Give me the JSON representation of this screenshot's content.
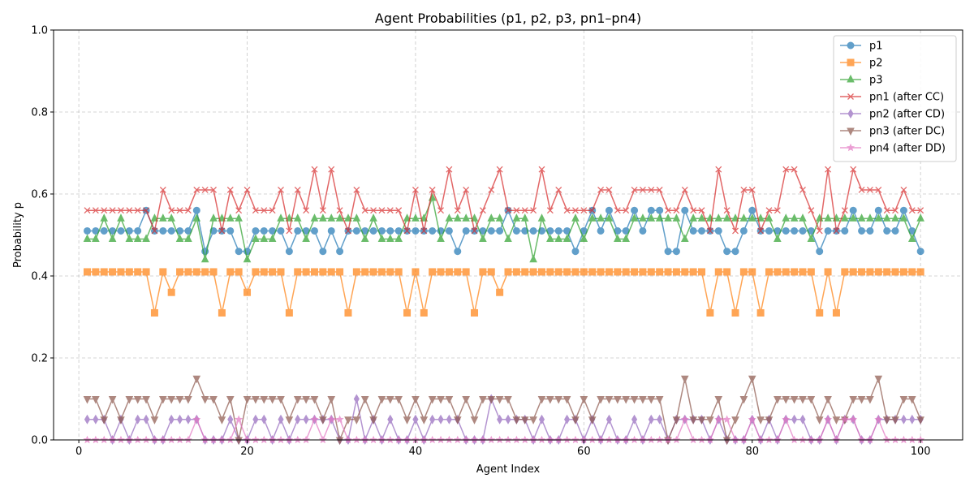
{
  "chart_data": {
    "type": "line",
    "title": "Agent Probabilities (p1, p2, p3, pn1–pn4)",
    "xlabel": "Agent Index",
    "ylabel": "Probability p",
    "xlim": [
      -3,
      105
    ],
    "ylim": [
      0,
      1.0
    ],
    "xticks": [
      0,
      20,
      40,
      60,
      80,
      100
    ],
    "yticks": [
      0.0,
      0.2,
      0.4,
      0.6,
      0.8,
      1.0
    ],
    "xtick_labels": [
      "0",
      "20",
      "40",
      "60",
      "80",
      "100"
    ],
    "ytick_labels": [
      "0.0",
      "0.2",
      "0.4",
      "0.6",
      "0.8",
      "1.0"
    ],
    "grid": true,
    "legend_position": "top-right",
    "x": [
      1,
      2,
      3,
      4,
      5,
      6,
      7,
      8,
      9,
      10,
      11,
      12,
      13,
      14,
      15,
      16,
      17,
      18,
      19,
      20,
      21,
      22,
      23,
      24,
      25,
      26,
      27,
      28,
      29,
      30,
      31,
      32,
      33,
      34,
      35,
      36,
      37,
      38,
      39,
      40,
      41,
      42,
      43,
      44,
      45,
      46,
      47,
      48,
      49,
      50,
      51,
      52,
      53,
      54,
      55,
      56,
      57,
      58,
      59,
      60,
      61,
      62,
      63,
      64,
      65,
      66,
      67,
      68,
      69,
      70,
      71,
      72,
      73,
      74,
      75,
      76,
      77,
      78,
      79,
      80,
      81,
      82,
      83,
      84,
      85,
      86,
      87,
      88,
      89,
      90,
      91,
      92,
      93,
      94,
      95,
      96,
      97,
      98,
      99,
      100
    ],
    "series": [
      {
        "name": "p1",
        "color": "#1f77b4",
        "marker": "circle",
        "values": [
          0.51,
          0.51,
          0.51,
          0.51,
          0.51,
          0.51,
          0.51,
          0.56,
          0.51,
          0.51,
          0.51,
          0.51,
          0.51,
          0.56,
          0.46,
          0.51,
          0.51,
          0.51,
          0.46,
          0.46,
          0.51,
          0.51,
          0.51,
          0.51,
          0.46,
          0.51,
          0.51,
          0.51,
          0.46,
          0.51,
          0.46,
          0.51,
          0.51,
          0.51,
          0.51,
          0.51,
          0.51,
          0.51,
          0.51,
          0.51,
          0.51,
          0.51,
          0.51,
          0.51,
          0.46,
          0.51,
          0.51,
          0.51,
          0.51,
          0.51,
          0.56,
          0.51,
          0.51,
          0.51,
          0.51,
          0.51,
          0.51,
          0.51,
          0.46,
          0.51,
          0.56,
          0.51,
          0.56,
          0.51,
          0.51,
          0.56,
          0.51,
          0.56,
          0.56,
          0.46,
          0.46,
          0.56,
          0.51,
          0.51,
          0.51,
          0.51,
          0.46,
          0.46,
          0.51,
          0.56,
          0.51,
          0.51,
          0.51,
          0.51,
          0.51,
          0.51,
          0.51,
          0.46,
          0.51,
          0.51,
          0.51,
          0.56,
          0.51,
          0.51,
          0.56,
          0.51,
          0.51,
          0.56,
          0.51,
          0.46
        ]
      },
      {
        "name": "p2",
        "color": "#ff7f0e",
        "marker": "square",
        "values": [
          0.41,
          0.41,
          0.41,
          0.41,
          0.41,
          0.41,
          0.41,
          0.41,
          0.31,
          0.41,
          0.36,
          0.41,
          0.41,
          0.41,
          0.41,
          0.41,
          0.31,
          0.41,
          0.41,
          0.36,
          0.41,
          0.41,
          0.41,
          0.41,
          0.31,
          0.41,
          0.41,
          0.41,
          0.41,
          0.41,
          0.41,
          0.31,
          0.41,
          0.41,
          0.41,
          0.41,
          0.41,
          0.41,
          0.31,
          0.41,
          0.31,
          0.41,
          0.41,
          0.41,
          0.41,
          0.41,
          0.31,
          0.41,
          0.41,
          0.36,
          0.41,
          0.41,
          0.41,
          0.41,
          0.41,
          0.41,
          0.41,
          0.41,
          0.41,
          0.41,
          0.41,
          0.41,
          0.41,
          0.41,
          0.41,
          0.41,
          0.41,
          0.41,
          0.41,
          0.41,
          0.41,
          0.41,
          0.41,
          0.41,
          0.31,
          0.41,
          0.41,
          0.31,
          0.41,
          0.41,
          0.31,
          0.41,
          0.41,
          0.41,
          0.41,
          0.41,
          0.41,
          0.31,
          0.41,
          0.31,
          0.41,
          0.41,
          0.41,
          0.41,
          0.41,
          0.41,
          0.41,
          0.41,
          0.41,
          0.41
        ]
      },
      {
        "name": "p3",
        "color": "#2ca02c",
        "marker": "triangle-up",
        "values": [
          0.49,
          0.49,
          0.54,
          0.49,
          0.54,
          0.49,
          0.49,
          0.49,
          0.54,
          0.54,
          0.54,
          0.49,
          0.49,
          0.54,
          0.44,
          0.54,
          0.54,
          0.54,
          0.54,
          0.44,
          0.49,
          0.49,
          0.49,
          0.54,
          0.54,
          0.54,
          0.49,
          0.54,
          0.54,
          0.54,
          0.54,
          0.54,
          0.54,
          0.49,
          0.54,
          0.49,
          0.49,
          0.49,
          0.54,
          0.54,
          0.54,
          0.59,
          0.49,
          0.54,
          0.54,
          0.54,
          0.54,
          0.49,
          0.54,
          0.54,
          0.49,
          0.54,
          0.54,
          0.44,
          0.54,
          0.49,
          0.49,
          0.49,
          0.54,
          0.49,
          0.54,
          0.54,
          0.54,
          0.49,
          0.49,
          0.54,
          0.54,
          0.54,
          0.54,
          0.54,
          0.54,
          0.49,
          0.54,
          0.54,
          0.54,
          0.54,
          0.54,
          0.54,
          0.54,
          0.54,
          0.54,
          0.54,
          0.49,
          0.54,
          0.54,
          0.54,
          0.49,
          0.54,
          0.54,
          0.54,
          0.54,
          0.54,
          0.54,
          0.54,
          0.54,
          0.54,
          0.54,
          0.54,
          0.49,
          0.54
        ]
      },
      {
        "name": "pn1 (after CC)",
        "color": "#d62728",
        "marker": "x",
        "values": [
          0.56,
          0.56,
          0.56,
          0.56,
          0.56,
          0.56,
          0.56,
          0.56,
          0.51,
          0.61,
          0.56,
          0.56,
          0.56,
          0.61,
          0.61,
          0.61,
          0.51,
          0.61,
          0.56,
          0.61,
          0.56,
          0.56,
          0.56,
          0.61,
          0.51,
          0.61,
          0.56,
          0.66,
          0.56,
          0.66,
          0.56,
          0.51,
          0.61,
          0.56,
          0.56,
          0.56,
          0.56,
          0.56,
          0.51,
          0.61,
          0.51,
          0.61,
          0.56,
          0.66,
          0.56,
          0.61,
          0.51,
          0.56,
          0.61,
          0.66,
          0.56,
          0.56,
          0.56,
          0.56,
          0.66,
          0.56,
          0.61,
          0.56,
          0.56,
          0.56,
          0.56,
          0.61,
          0.61,
          0.56,
          0.56,
          0.61,
          0.61,
          0.61,
          0.61,
          0.56,
          0.56,
          0.61,
          0.56,
          0.56,
          0.51,
          0.66,
          0.56,
          0.51,
          0.61,
          0.61,
          0.51,
          0.56,
          0.56,
          0.66,
          0.66,
          0.61,
          0.56,
          0.51,
          0.66,
          0.51,
          0.56,
          0.66,
          0.61,
          0.61,
          0.61,
          0.56,
          0.56,
          0.61,
          0.56,
          0.56
        ]
      },
      {
        "name": "pn2 (after CD)",
        "color": "#9467bd",
        "marker": "diamond",
        "values": [
          0.05,
          0.05,
          0.05,
          0.0,
          0.05,
          0.0,
          0.05,
          0.05,
          0.0,
          0.0,
          0.05,
          0.05,
          0.05,
          0.05,
          0.0,
          0.0,
          0.0,
          0.05,
          0.0,
          0.0,
          0.05,
          0.05,
          0.0,
          0.05,
          0.0,
          0.05,
          0.05,
          0.05,
          0.05,
          0.05,
          0.0,
          0.0,
          0.1,
          0.0,
          0.05,
          0.0,
          0.05,
          0.0,
          0.0,
          0.05,
          0.0,
          0.05,
          0.05,
          0.05,
          0.05,
          0.0,
          0.0,
          0.0,
          0.1,
          0.05,
          0.05,
          0.05,
          0.05,
          0.0,
          0.05,
          0.0,
          0.0,
          0.05,
          0.05,
          0.0,
          0.05,
          0.0,
          0.05,
          0.0,
          0.0,
          0.05,
          0.0,
          0.05,
          0.05,
          0.0,
          0.05,
          0.05,
          0.05,
          0.05,
          0.0,
          0.05,
          0.0,
          0.0,
          0.0,
          0.05,
          0.0,
          0.05,
          0.0,
          0.05,
          0.05,
          0.05,
          0.0,
          0.0,
          0.05,
          0.0,
          0.05,
          0.05,
          0.0,
          0.0,
          0.05,
          0.05,
          0.05,
          0.05,
          0.05,
          0.05
        ]
      },
      {
        "name": "pn3 (after DC)",
        "color": "#8c564b",
        "marker": "triangle-down",
        "values": [
          0.1,
          0.1,
          0.05,
          0.1,
          0.05,
          0.1,
          0.1,
          0.1,
          0.05,
          0.1,
          0.1,
          0.1,
          0.1,
          0.15,
          0.1,
          0.1,
          0.05,
          0.1,
          0.0,
          0.1,
          0.1,
          0.1,
          0.1,
          0.1,
          0.05,
          0.1,
          0.1,
          0.1,
          0.05,
          0.1,
          0.0,
          0.05,
          0.05,
          0.1,
          0.05,
          0.1,
          0.1,
          0.1,
          0.05,
          0.1,
          0.05,
          0.1,
          0.1,
          0.1,
          0.05,
          0.1,
          0.05,
          0.1,
          0.1,
          0.1,
          0.1,
          0.05,
          0.05,
          0.05,
          0.1,
          0.1,
          0.1,
          0.1,
          0.05,
          0.1,
          0.05,
          0.1,
          0.1,
          0.1,
          0.1,
          0.1,
          0.1,
          0.1,
          0.1,
          0.0,
          0.05,
          0.15,
          0.05,
          0.05,
          0.05,
          0.1,
          0.0,
          0.05,
          0.1,
          0.15,
          0.05,
          0.05,
          0.1,
          0.1,
          0.1,
          0.1,
          0.1,
          0.05,
          0.1,
          0.05,
          0.05,
          0.1,
          0.1,
          0.1,
          0.15,
          0.05,
          0.05,
          0.1,
          0.1,
          0.05
        ]
      },
      {
        "name": "pn4 (after DD)",
        "color": "#e377c2",
        "marker": "star",
        "values": [
          0.0,
          0.0,
          0.0,
          0.0,
          0.0,
          0.0,
          0.0,
          0.0,
          0.0,
          0.0,
          0.0,
          0.0,
          0.0,
          0.05,
          0.0,
          0.0,
          0.0,
          0.0,
          0.05,
          0.0,
          0.0,
          0.0,
          0.0,
          0.0,
          0.0,
          0.0,
          0.0,
          0.05,
          0.0,
          0.05,
          0.05,
          0.0,
          0.0,
          0.0,
          0.0,
          0.0,
          0.0,
          0.0,
          0.0,
          0.0,
          0.0,
          0.0,
          0.0,
          0.0,
          0.0,
          0.0,
          0.0,
          0.0,
          0.0,
          0.0,
          0.0,
          0.0,
          0.0,
          0.0,
          0.0,
          0.0,
          0.0,
          0.0,
          0.0,
          0.0,
          0.0,
          0.0,
          0.0,
          0.0,
          0.0,
          0.0,
          0.0,
          0.0,
          0.0,
          0.0,
          0.0,
          0.05,
          0.0,
          0.0,
          0.0,
          0.05,
          0.05,
          0.0,
          0.0,
          0.05,
          0.0,
          0.0,
          0.0,
          0.05,
          0.0,
          0.0,
          0.0,
          0.0,
          0.05,
          0.0,
          0.05,
          0.05,
          0.0,
          0.0,
          0.05,
          0.0,
          0.0,
          0.0,
          0.0,
          0.0
        ]
      }
    ]
  }
}
